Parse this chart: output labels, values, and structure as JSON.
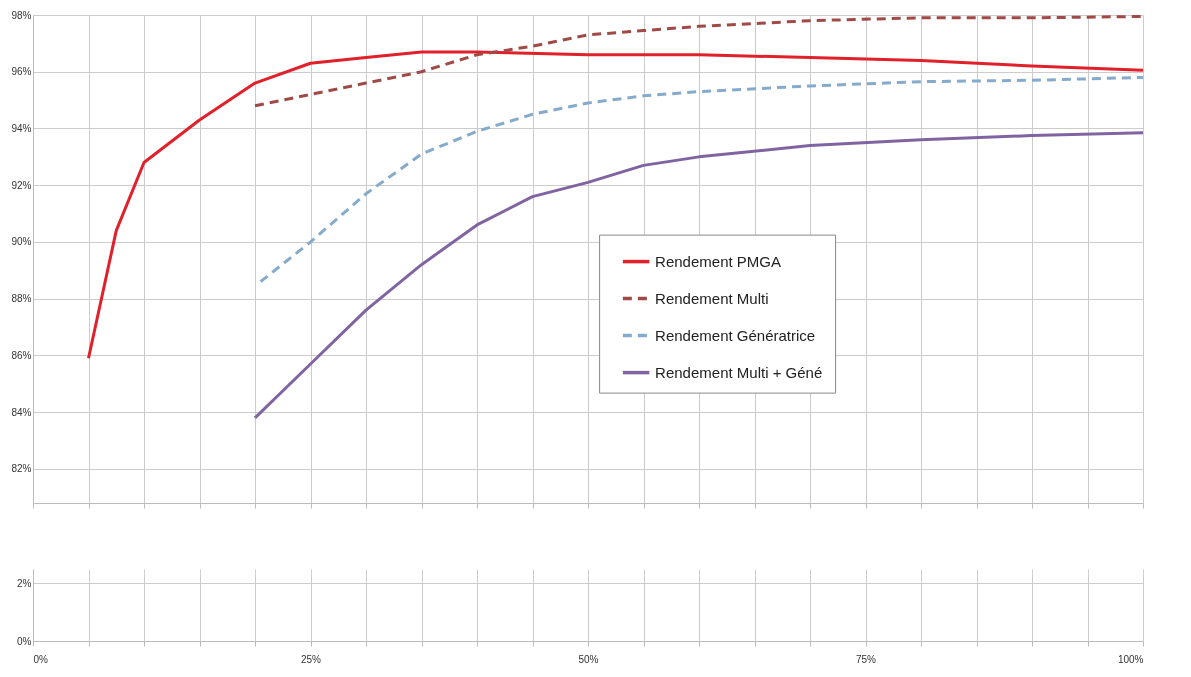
{
  "chart_data": [
    {
      "type": "line",
      "tick_labels": "y",
      "grid": true,
      "legend": "right",
      "marker": "none",
      "xlim": [
        0,
        100
      ],
      "xticks": [
        {
          "value": 0,
          "label": null
        },
        {
          "value": 5,
          "label": null
        },
        {
          "value": 10,
          "label": null
        },
        {
          "value": 15,
          "label": null
        },
        {
          "value": 20,
          "label": null
        },
        {
          "value": 25,
          "label": null
        },
        {
          "value": 30,
          "label": null
        },
        {
          "value": 35,
          "label": null
        },
        {
          "value": 40,
          "label": null
        },
        {
          "value": 45,
          "label": null
        },
        {
          "value": 50,
          "label": null
        },
        {
          "value": 55,
          "label": null
        },
        {
          "value": 60,
          "label": null
        },
        {
          "value": 65,
          "label": null
        },
        {
          "value": 70,
          "label": null
        },
        {
          "value": 75,
          "label": null
        },
        {
          "value": 80,
          "label": null
        },
        {
          "value": 85,
          "label": null
        },
        {
          "value": 90,
          "label": null
        },
        {
          "value": 95,
          "label": null
        },
        {
          "value": 100,
          "label": null
        }
      ],
      "ylim": [
        80.8,
        98
      ],
      "yticks": [
        {
          "value": 82,
          "label": "82%"
        },
        {
          "value": 84,
          "label": "84%"
        },
        {
          "value": 86,
          "label": "86%"
        },
        {
          "value": 88,
          "label": "88%"
        },
        {
          "value": 90,
          "label": "90%"
        },
        {
          "value": 92,
          "label": "92%"
        },
        {
          "value": 94,
          "label": "94%"
        },
        {
          "value": 96,
          "label": "96%"
        },
        {
          "value": 98,
          "label": "98%"
        }
      ],
      "series": [
        {
          "name": "Rendement PMGA",
          "color": "#e0202a",
          "line_style": "solid",
          "x": [
            5,
            7.5,
            10,
            15,
            20,
            25,
            30,
            35,
            40,
            50,
            60,
            70,
            80,
            90,
            100
          ],
          "values": [
            85.9,
            90.4,
            92.8,
            94.3,
            95.6,
            96.3,
            96.5,
            96.7,
            96.7,
            96.6,
            96.6,
            96.5,
            96.4,
            96.2,
            96.05
          ]
        },
        {
          "name": "Rendement Multi",
          "color": "#a04a48",
          "line_style": "dashed",
          "x": [
            20,
            25,
            30,
            35,
            40,
            45,
            50,
            55,
            60,
            70,
            80,
            90,
            100
          ],
          "values": [
            94.8,
            95.2,
            95.6,
            96.0,
            96.6,
            96.9,
            97.3,
            97.45,
            97.6,
            97.8,
            97.9,
            97.9,
            97.95
          ]
        },
        {
          "name": "Rendement Génératrice",
          "color": "#86aacb",
          "line_style": "dashed",
          "x": [
            20.5,
            25,
            30,
            35,
            40,
            45,
            50,
            55,
            60,
            70,
            80,
            90,
            100
          ],
          "values": [
            88.6,
            90.0,
            91.7,
            93.1,
            93.9,
            94.5,
            94.9,
            95.15,
            95.3,
            95.5,
            95.65,
            95.7,
            95.8
          ]
        },
        {
          "name": "Rendement Multi + Géné",
          "color": "#8064a2",
          "line_style": "solid",
          "x": [
            20,
            25,
            30,
            35,
            40,
            45,
            50,
            55,
            60,
            70,
            80,
            90,
            100
          ],
          "values": [
            83.8,
            85.7,
            87.6,
            89.2,
            90.6,
            91.6,
            92.1,
            92.7,
            93.0,
            93.4,
            93.6,
            93.75,
            93.85
          ]
        }
      ]
    },
    {
      "type": "line",
      "grid": true,
      "xlim": [
        0,
        100
      ],
      "xticks": [
        {
          "value": 0,
          "label": "0%"
        },
        {
          "value": 5,
          "label": null
        },
        {
          "value": 10,
          "label": null
        },
        {
          "value": 15,
          "label": null
        },
        {
          "value": 20,
          "label": null
        },
        {
          "value": 25,
          "label": "25%"
        },
        {
          "value": 30,
          "label": null
        },
        {
          "value": 35,
          "label": null
        },
        {
          "value": 40,
          "label": null
        },
        {
          "value": 45,
          "label": null
        },
        {
          "value": 50,
          "label": "50%"
        },
        {
          "value": 55,
          "label": null
        },
        {
          "value": 60,
          "label": null
        },
        {
          "value": 65,
          "label": null
        },
        {
          "value": 70,
          "label": null
        },
        {
          "value": 75,
          "label": "75%"
        },
        {
          "value": 80,
          "label": null
        },
        {
          "value": 85,
          "label": null
        },
        {
          "value": 90,
          "label": null
        },
        {
          "value": 95,
          "label": null
        },
        {
          "value": 100,
          "label": "100%"
        }
      ],
      "ylim": [
        0,
        2.5
      ],
      "yticks": [
        {
          "value": 0,
          "label": "0%"
        },
        {
          "value": 2,
          "label": "2%"
        }
      ]
    }
  ]
}
